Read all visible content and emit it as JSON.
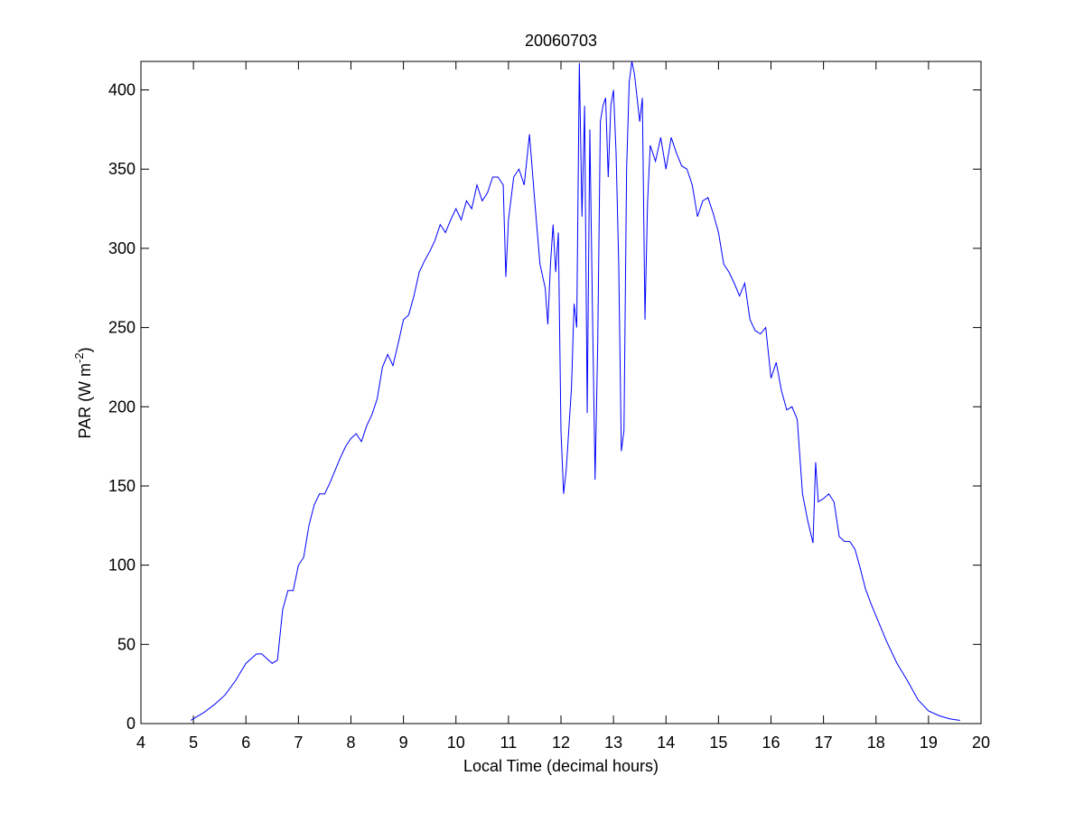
{
  "chart_data": {
    "type": "line",
    "title": "20060703",
    "xlabel": "Local Time (decimal hours)",
    "ylabel": [
      "PAR (W m",
      "-2",
      ")"
    ],
    "xlim": [
      4,
      20
    ],
    "xticks": [
      4,
      5,
      6,
      7,
      8,
      9,
      10,
      11,
      12,
      13,
      14,
      15,
      16,
      17,
      18,
      19,
      20
    ],
    "ylim": [
      0,
      418
    ],
    "yticks": [
      0,
      50,
      100,
      150,
      200,
      250,
      300,
      350,
      400
    ],
    "grid": false,
    "series": [
      {
        "color": "#0000ff",
        "x": [
          4.95,
          5.0,
          5.2,
          5.4,
          5.6,
          5.8,
          6.0,
          6.1,
          6.2,
          6.3,
          6.4,
          6.5,
          6.6,
          6.7,
          6.8,
          6.9,
          7.0,
          7.1,
          7.2,
          7.3,
          7.4,
          7.5,
          7.6,
          7.7,
          7.8,
          7.9,
          8.0,
          8.1,
          8.2,
          8.3,
          8.4,
          8.5,
          8.6,
          8.7,
          8.8,
          8.9,
          9.0,
          9.1,
          9.2,
          9.3,
          9.4,
          9.5,
          9.6,
          9.7,
          9.8,
          9.9,
          10.0,
          10.1,
          10.2,
          10.3,
          10.4,
          10.5,
          10.6,
          10.7,
          10.8,
          10.9,
          10.95,
          11.0,
          11.1,
          11.2,
          11.3,
          11.4,
          11.5,
          11.6,
          11.7,
          11.75,
          11.8,
          11.85,
          11.9,
          11.95,
          12.0,
          12.05,
          12.1,
          12.2,
          12.25,
          12.3,
          12.35,
          12.4,
          12.45,
          12.5,
          12.55,
          12.6,
          12.65,
          12.7,
          12.75,
          12.8,
          12.85,
          12.9,
          12.95,
          13.0,
          13.05,
          13.1,
          13.15,
          13.2,
          13.25,
          13.3,
          13.35,
          13.4,
          13.45,
          13.5,
          13.55,
          13.6,
          13.65,
          13.7,
          13.8,
          13.9,
          14.0,
          14.1,
          14.2,
          14.3,
          14.4,
          14.5,
          14.6,
          14.7,
          14.8,
          14.9,
          15.0,
          15.1,
          15.2,
          15.3,
          15.4,
          15.5,
          15.6,
          15.7,
          15.8,
          15.9,
          16.0,
          16.1,
          16.2,
          16.3,
          16.4,
          16.5,
          16.6,
          16.7,
          16.8,
          16.85,
          16.9,
          17.0,
          17.1,
          17.2,
          17.3,
          17.4,
          17.5,
          17.6,
          17.7,
          17.8,
          17.9,
          18.0,
          18.2,
          18.4,
          18.6,
          18.8,
          19.0,
          19.2,
          19.4,
          19.6
        ],
        "values": [
          2,
          3,
          7,
          12,
          18,
          27,
          38,
          41,
          44,
          44,
          41,
          38,
          40,
          72,
          84,
          84,
          100,
          105,
          125,
          138,
          145,
          145,
          152,
          160,
          168,
          175,
          180,
          183,
          178,
          188,
          195,
          205,
          225,
          233,
          226,
          240,
          255,
          258,
          270,
          285,
          292,
          298,
          305,
          315,
          310,
          318,
          325,
          318,
          330,
          325,
          340,
          330,
          335,
          345,
          345,
          340,
          282,
          318,
          345,
          350,
          340,
          372,
          330,
          290,
          275,
          252,
          290,
          315,
          285,
          310,
          185,
          145,
          160,
          212,
          265,
          250,
          417,
          320,
          390,
          196,
          375,
          260,
          154,
          240,
          380,
          390,
          395,
          345,
          390,
          400,
          360,
          290,
          172,
          185,
          350,
          405,
          418,
          410,
          395,
          380,
          395,
          255,
          330,
          365,
          355,
          370,
          350,
          370,
          360,
          352,
          350,
          340,
          320,
          330,
          332,
          322,
          310,
          290,
          285,
          278,
          270,
          278,
          255,
          248,
          246,
          250,
          218,
          228,
          210,
          198,
          200,
          192,
          145,
          128,
          114,
          165,
          140,
          142,
          145,
          140,
          118,
          115,
          115,
          110,
          98,
          85,
          76,
          68,
          52,
          38,
          27,
          15,
          8,
          5,
          3,
          2
        ]
      }
    ]
  }
}
